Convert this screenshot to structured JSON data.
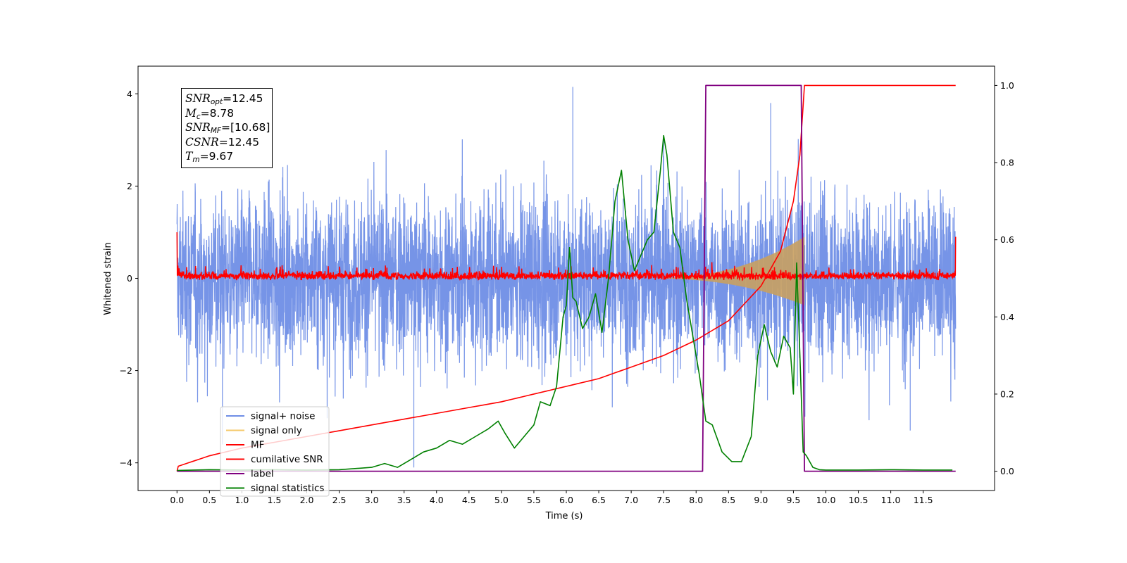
{
  "chart_data": {
    "type": "line",
    "title": "",
    "xlabel": "Time (s)",
    "ylabel": "Whitened strain",
    "xlim": [
      -0.6,
      12.6
    ],
    "ylim": [
      -4.6,
      4.6
    ],
    "ylim_right": [
      -0.05,
      1.05
    ],
    "x_ticks": [
      0.0,
      0.5,
      1.0,
      1.5,
      2.0,
      2.5,
      3.0,
      3.5,
      4.0,
      4.5,
      5.0,
      5.5,
      6.0,
      6.5,
      7.0,
      7.5,
      8.0,
      8.5,
      9.0,
      9.5,
      10.0,
      10.5,
      11.0,
      11.5
    ],
    "x_tick_labels": [
      "0.0",
      "0.5",
      "1.0",
      "1.5",
      "2.0",
      "2.5",
      "3.0",
      "3.5",
      "4.0",
      "4.5",
      "5.0",
      "5.5",
      "6.0",
      "6.5",
      "7.0",
      "7.5",
      "8.0",
      "8.5",
      "9.0",
      "9.5",
      "10.0",
      "10.5",
      "11.0",
      "11.5"
    ],
    "y_ticks_left": [
      -4,
      -2,
      0,
      2,
      4
    ],
    "y_tick_labels_left": [
      "−4",
      "−2",
      "0",
      "2",
      "4"
    ],
    "y_ticks_right": [
      0.0,
      0.2,
      0.4,
      0.6,
      0.8,
      1.0
    ],
    "y_tick_labels_right": [
      "0.0",
      "0.2",
      "0.4",
      "0.6",
      "0.8",
      "1.0"
    ],
    "grid": false,
    "legend_position": "lower-left",
    "series": [
      {
        "name": "signal+ noise",
        "color": "#6f8ee6",
        "axis": "left",
        "kind": "noise",
        "x_range": [
          0,
          12
        ],
        "envelope_typical": 1.6,
        "max": 4.15,
        "min": -4.1
      },
      {
        "name": "signal only",
        "color": "#f5c96a",
        "axis": "left",
        "kind": "chirp",
        "x_range": [
          7.2,
          9.67
        ],
        "peak_amplitude": 0.9
      },
      {
        "name": "MF",
        "color": "#ff0000",
        "axis": "left",
        "kind": "noise",
        "x_range": [
          0,
          12
        ],
        "envelope_typical": 0.13,
        "start_value": 1.0,
        "end_value": 0.9
      },
      {
        "name": "cumilative SNR",
        "color": "#ff0000",
        "axis": "right",
        "x": [
          0.0,
          0.02,
          0.5,
          1.0,
          1.5,
          2.0,
          2.5,
          3.0,
          3.5,
          4.0,
          4.5,
          5.0,
          5.5,
          6.0,
          6.5,
          7.0,
          7.5,
          8.0,
          8.5,
          9.0,
          9.3,
          9.5,
          9.6,
          9.67,
          12.0
        ],
        "values": [
          0.0,
          0.013,
          0.04,
          0.06,
          0.075,
          0.09,
          0.105,
          0.12,
          0.135,
          0.15,
          0.165,
          0.18,
          0.2,
          0.22,
          0.24,
          0.27,
          0.3,
          0.34,
          0.39,
          0.48,
          0.57,
          0.7,
          0.82,
          1.0,
          1.0
        ]
      },
      {
        "name": "label",
        "color": "#800080",
        "axis": "right",
        "x": [
          0.0,
          8.1,
          8.15,
          9.62,
          9.67,
          12.0
        ],
        "values": [
          0.0,
          0.0,
          1.0,
          1.0,
          0.0,
          0.0
        ]
      },
      {
        "name": "signal statistics",
        "color": "#008000",
        "axis": "right",
        "x": [
          0.0,
          0.5,
          1.0,
          1.5,
          2.0,
          2.5,
          3.0,
          3.2,
          3.4,
          3.6,
          3.8,
          4.0,
          4.2,
          4.4,
          4.6,
          4.8,
          4.95,
          5.05,
          5.2,
          5.35,
          5.5,
          5.6,
          5.75,
          5.85,
          5.95,
          6.0,
          6.05,
          6.1,
          6.15,
          6.25,
          6.35,
          6.45,
          6.55,
          6.65,
          6.75,
          6.85,
          6.95,
          7.05,
          7.15,
          7.25,
          7.35,
          7.45,
          7.5,
          7.55,
          7.65,
          7.75,
          7.85,
          7.95,
          8.05,
          8.15,
          8.25,
          8.4,
          8.55,
          8.7,
          8.85,
          8.95,
          9.05,
          9.15,
          9.25,
          9.35,
          9.45,
          9.5,
          9.55,
          9.6,
          9.65,
          9.7,
          9.8,
          9.9,
          10.0,
          10.5,
          11.0,
          11.5,
          11.95
        ],
        "values": [
          0.002,
          0.004,
          0.003,
          0.004,
          0.003,
          0.004,
          0.01,
          0.02,
          0.01,
          0.03,
          0.05,
          0.06,
          0.08,
          0.07,
          0.09,
          0.11,
          0.13,
          0.1,
          0.06,
          0.09,
          0.12,
          0.18,
          0.17,
          0.22,
          0.4,
          0.43,
          0.58,
          0.45,
          0.44,
          0.37,
          0.4,
          0.46,
          0.36,
          0.5,
          0.7,
          0.78,
          0.6,
          0.52,
          0.56,
          0.6,
          0.62,
          0.78,
          0.87,
          0.82,
          0.62,
          0.58,
          0.45,
          0.35,
          0.25,
          0.13,
          0.12,
          0.05,
          0.025,
          0.025,
          0.09,
          0.3,
          0.38,
          0.31,
          0.27,
          0.35,
          0.32,
          0.2,
          0.54,
          0.3,
          0.05,
          0.04,
          0.01,
          0.004,
          0.003,
          0.003,
          0.004,
          0.003,
          0.003
        ]
      }
    ],
    "annotations": [
      {
        "main": "SNR",
        "sub": "opt",
        "value": "=12.45"
      },
      {
        "main": "M",
        "sub": "c",
        "value": "=8.78"
      },
      {
        "main": "SNR",
        "sub": "MF",
        "value": "=[10.68]"
      },
      {
        "main": "CSNR",
        "sub": "",
        "value": "=12.45"
      },
      {
        "main": "T",
        "sub": "m",
        "value": "=9.67"
      }
    ]
  }
}
